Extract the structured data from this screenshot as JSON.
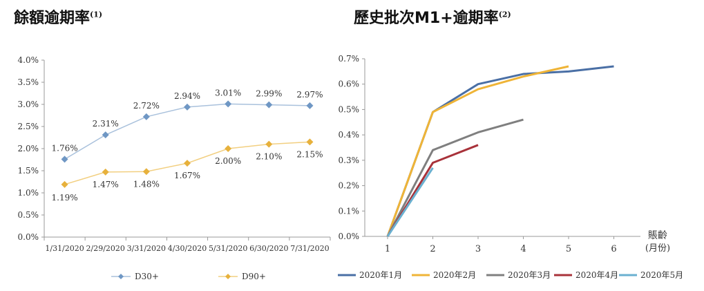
{
  "left_title": {
    "text": "餘額逾期率",
    "note": "(1)"
  },
  "right_title": {
    "text": "歷史批次M1+逾期率",
    "note": "(2)"
  },
  "chart_data": [
    {
      "type": "line",
      "title": "餘額逾期率(1)",
      "categories": [
        "1/31/2020",
        "2/29/2020",
        "3/31/2020",
        "4/30/2020",
        "5/31/2020",
        "6/30/2020",
        "7/31/2020"
      ],
      "ylim": [
        0,
        4.0
      ],
      "yticks": [
        "0.0%",
        "0.5%",
        "1.0%",
        "1.5%",
        "2.0%",
        "2.5%",
        "3.0%",
        "3.5%",
        "4.0%"
      ],
      "grid": false,
      "legend": "bottom",
      "series": [
        {
          "name": "D30+",
          "color": "#6f97c4",
          "line_color": "#a9c1dc",
          "values": [
            1.76,
            2.31,
            2.72,
            2.94,
            3.01,
            2.99,
            2.97
          ],
          "labels": [
            "1.76%",
            "2.31%",
            "2.72%",
            "2.94%",
            "3.01%",
            "2.99%",
            "2.97%"
          ]
        },
        {
          "name": "D90+",
          "color": "#e7b13c",
          "line_color": "#f2cf80",
          "values": [
            1.19,
            1.47,
            1.48,
            1.67,
            2.0,
            2.1,
            2.15
          ],
          "labels": [
            "1.19%",
            "1.47%",
            "1.48%",
            "1.67%",
            "2.00%",
            "2.10%",
            "2.15%"
          ]
        }
      ]
    },
    {
      "type": "line",
      "title": "歷史批次M1+逾期率(2)",
      "x_ticks": [
        1,
        2,
        3,
        4,
        5,
        6
      ],
      "xlabel": [
        "賬齡",
        "(月份)"
      ],
      "xlim": [
        1,
        6
      ],
      "ylim": [
        0,
        0.7
      ],
      "yticks": [
        "0.0%",
        "0.1%",
        "0.2%",
        "0.3%",
        "0.4%",
        "0.5%",
        "0.6%",
        "0.7%"
      ],
      "grid": false,
      "legend": "bottom",
      "series": [
        {
          "name": "2020年1月",
          "color": "#4a6fa5",
          "x": [
            1,
            2,
            3,
            4,
            5,
            6
          ],
          "values": [
            0.0,
            0.49,
            0.6,
            0.64,
            0.65,
            0.67
          ]
        },
        {
          "name": "2020年2月",
          "color": "#efb437",
          "x": [
            1,
            2,
            3,
            4,
            5
          ],
          "values": [
            0.0,
            0.49,
            0.58,
            0.63,
            0.67
          ]
        },
        {
          "name": "2020年3月",
          "color": "#7f7f7f",
          "x": [
            1,
            2,
            3,
            4
          ],
          "values": [
            0.0,
            0.34,
            0.41,
            0.46
          ]
        },
        {
          "name": "2020年4月",
          "color": "#a8323a",
          "x": [
            1,
            2,
            3
          ],
          "values": [
            0.0,
            0.29,
            0.36
          ]
        },
        {
          "name": "2020年5月",
          "color": "#6ab0d0",
          "x": [
            1,
            2
          ],
          "values": [
            0.0,
            0.27
          ]
        }
      ]
    }
  ]
}
